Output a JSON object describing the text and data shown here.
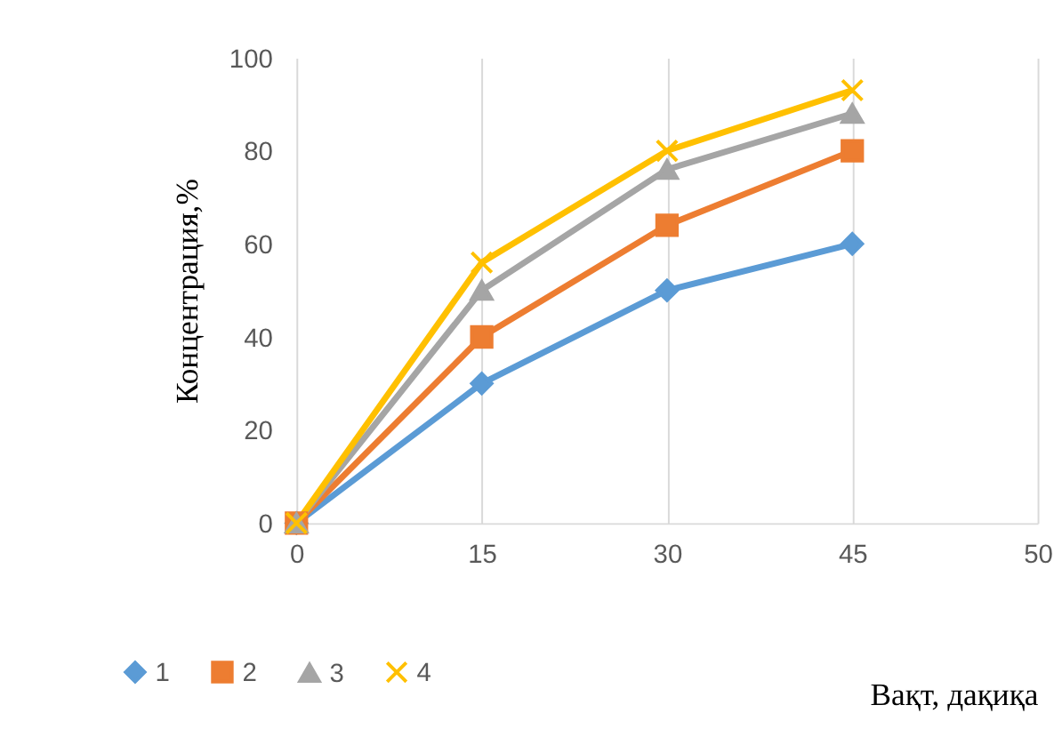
{
  "chart_data": {
    "type": "line",
    "xlabel": "Вақт, дақиқа",
    "ylabel": "Концентрация,%",
    "categories": [
      "0",
      "15",
      "30",
      "45",
      "50"
    ],
    "ylim": [
      0,
      100
    ],
    "yticks": [
      0,
      20,
      40,
      60,
      80,
      100
    ],
    "grid": "x",
    "legend": "bottom",
    "line_style": "solid",
    "series": [
      {
        "name": "1",
        "color": "#5b9bd5",
        "marker": "diamond",
        "values": [
          0,
          30,
          50,
          60,
          null
        ]
      },
      {
        "name": "2",
        "color": "#ed7d31",
        "marker": "square",
        "values": [
          0,
          40,
          64,
          80,
          null
        ]
      },
      {
        "name": "3",
        "color": "#a5a5a5",
        "marker": "triangle",
        "values": [
          0,
          50,
          76,
          88,
          null
        ]
      },
      {
        "name": "4",
        "color": "#ffc000",
        "marker": "cross",
        "values": [
          0,
          56,
          80,
          93,
          null
        ]
      }
    ]
  }
}
